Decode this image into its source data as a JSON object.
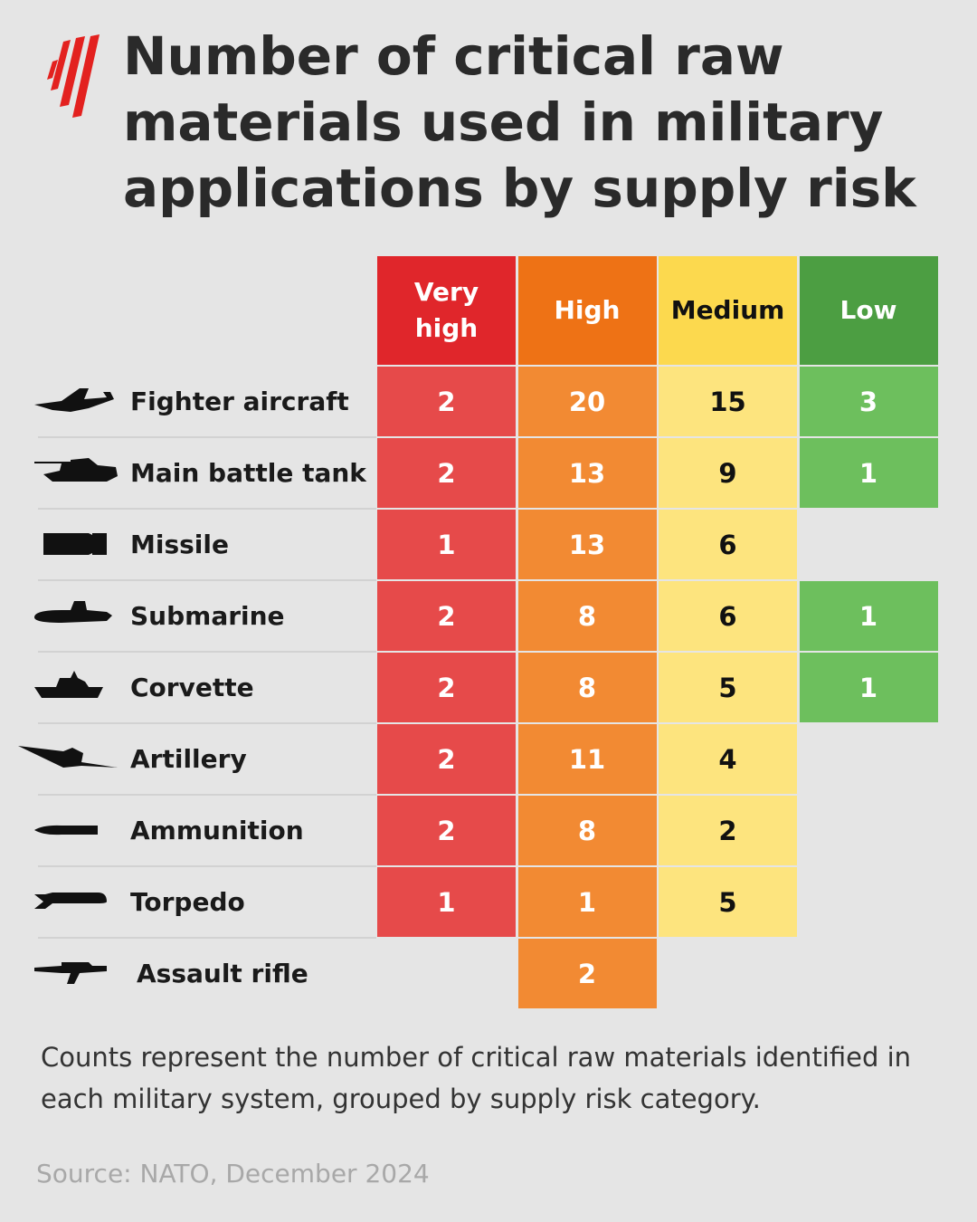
{
  "header": {
    "title": "Number of critical raw materials used in military applications by supply risk"
  },
  "table": {
    "columns": [
      {
        "label": "Very high",
        "header_color": "#e0262b",
        "cell_color": "#e64a4a",
        "text_color": "#ffffff"
      },
      {
        "label": "High",
        "header_color": "#ee7215",
        "cell_color": "#f28a33",
        "text_color": "#ffffff"
      },
      {
        "label": "Medium",
        "header_color": "#fcd94e",
        "cell_color": "#fde47e",
        "text_color": "#111111"
      },
      {
        "label": "Low",
        "header_color": "#4c9e42",
        "cell_color": "#6dbf5d",
        "text_color": "#ffffff"
      }
    ],
    "rows": [
      {
        "label": "Fighter aircraft",
        "values": [
          2,
          20,
          15,
          3
        ]
      },
      {
        "label": "Main battle tank",
        "values": [
          2,
          13,
          9,
          1
        ]
      },
      {
        "label": "Missile",
        "values": [
          1,
          13,
          6,
          null
        ]
      },
      {
        "label": "Submarine",
        "values": [
          2,
          8,
          6,
          1
        ]
      },
      {
        "label": "Corvette",
        "values": [
          2,
          8,
          5,
          1
        ]
      },
      {
        "label": "Artillery",
        "values": [
          2,
          11,
          4,
          null
        ]
      },
      {
        "label": "Ammunition",
        "values": [
          2,
          8,
          2,
          null
        ]
      },
      {
        "label": "Torpedo",
        "values": [
          1,
          1,
          5,
          null
        ]
      },
      {
        "label": "Assault rifle",
        "values": [
          null,
          2,
          null,
          null
        ]
      }
    ]
  },
  "footer": {
    "note": "Counts represent the number of critical raw materials identified in each military system, grouped by supply risk category.",
    "source": "Source: NATO, December 2024"
  }
}
